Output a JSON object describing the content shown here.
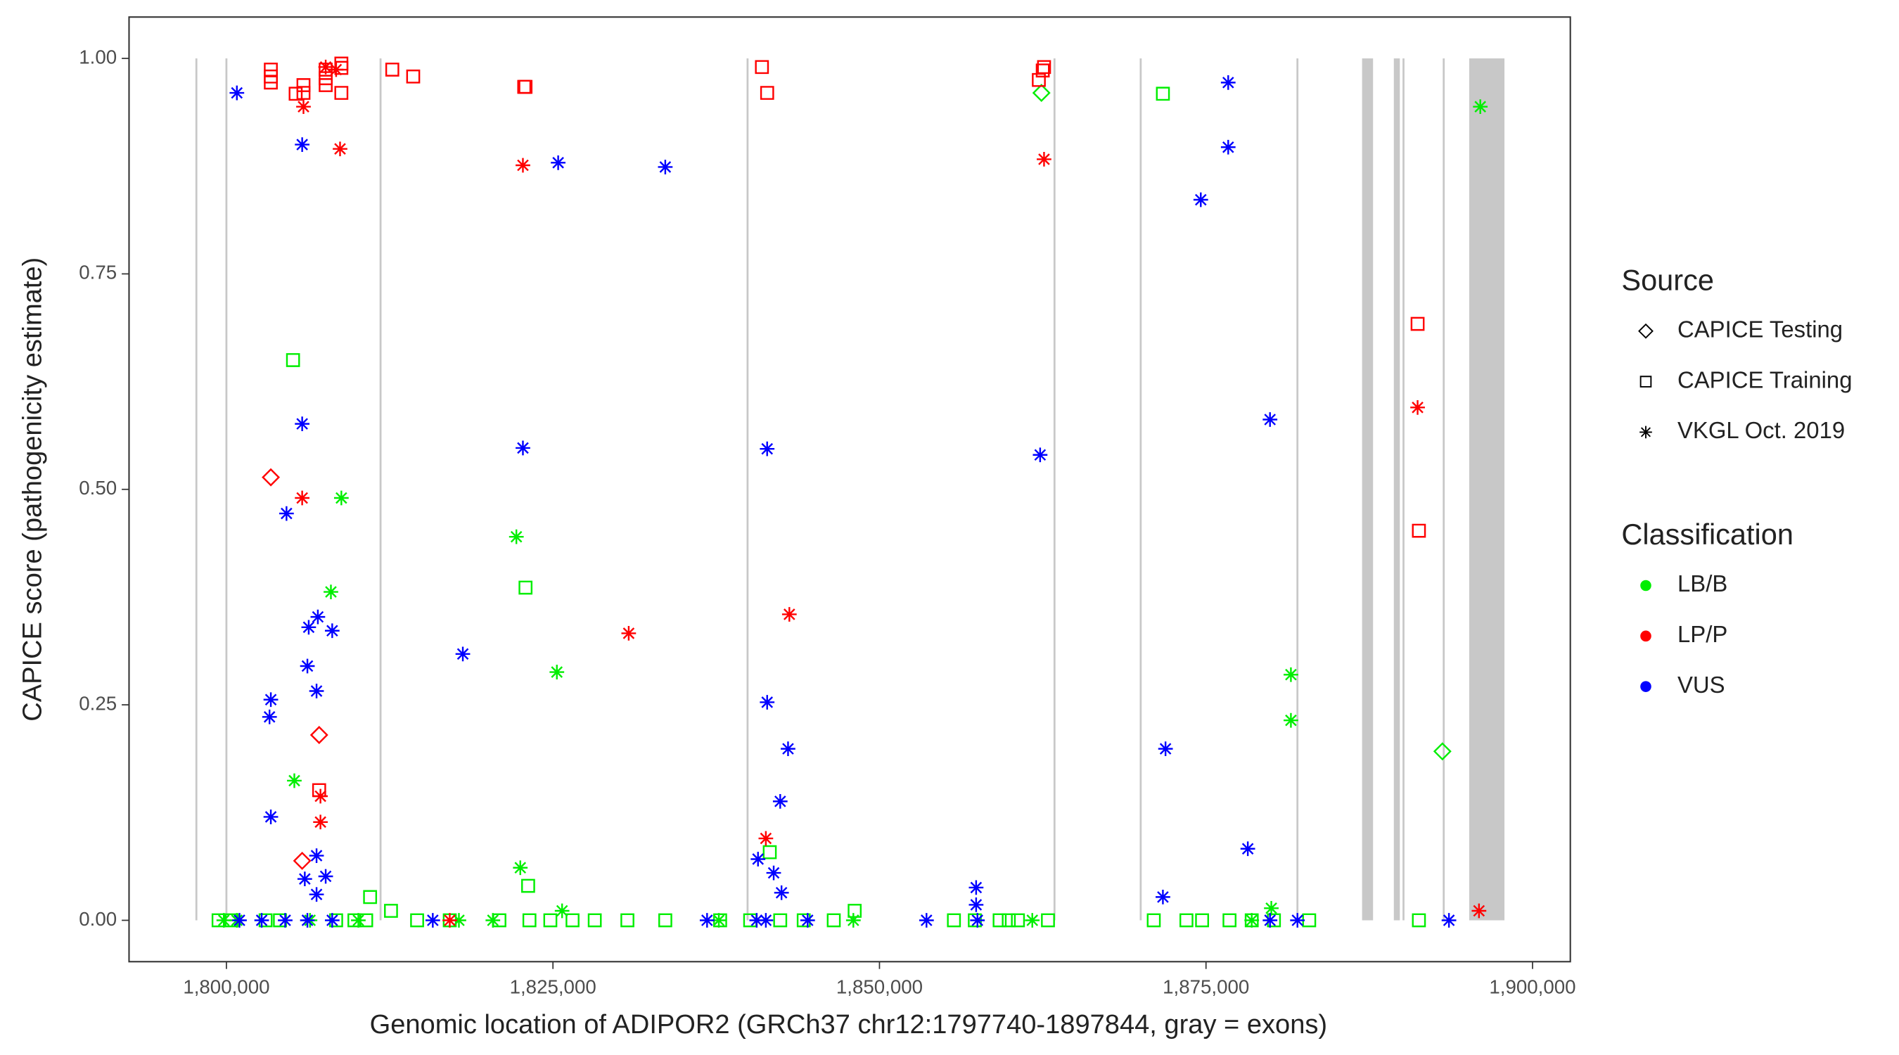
{
  "chart_data": {
    "type": "scatter",
    "xlabel": "Genomic location of ADIPOR2 (GRCh37 chr12:1797740-1897844, gray = exons)",
    "ylabel": "CAPICE score (pathogenicity estimate)",
    "xlim": [
      1792544,
      1902893
    ],
    "ylim": [
      -0.048,
      1.048
    ],
    "xticks": [
      {
        "value": 1800000,
        "label": "1,800,000"
      },
      {
        "value": 1825000,
        "label": "1,825,000"
      },
      {
        "value": 1850000,
        "label": "1,850,000"
      },
      {
        "value": 1875000,
        "label": "1,875,000"
      },
      {
        "value": 1900000,
        "label": "1,900,000"
      }
    ],
    "yticks": [
      {
        "value": 0,
        "label": "0.00"
      },
      {
        "value": 0.25,
        "label": "0.25"
      },
      {
        "value": 0.5,
        "label": "0.50"
      },
      {
        "value": 0.75,
        "label": "0.75"
      },
      {
        "value": 1,
        "label": "1.00"
      }
    ],
    "exon_color": "#c8c8c8",
    "exons": [
      [
        1797700,
        1797700
      ],
      [
        1800000,
        1800000
      ],
      [
        1811800,
        1811800
      ],
      [
        1839900,
        1839900
      ],
      [
        1863400,
        1863400
      ],
      [
        1870000,
        1870000
      ],
      [
        1882000,
        1882000
      ],
      [
        1886950,
        1887790
      ],
      [
        1889380,
        1889840
      ],
      [
        1890120,
        1890120
      ],
      [
        1893200,
        1893200
      ],
      [
        1895150,
        1897850
      ]
    ],
    "legend_source": {
      "title": "Source",
      "items": [
        {
          "name": "CAPICE Testing",
          "shape": "diamond"
        },
        {
          "name": "CAPICE Training",
          "shape": "square"
        },
        {
          "name": "VKGL Oct. 2019",
          "shape": "asterisk"
        }
      ]
    },
    "legend_classification": {
      "title": "Classification",
      "items": [
        {
          "name": "LB/B",
          "color": "#00ee00"
        },
        {
          "name": "LP/P",
          "color": "#ff0000"
        },
        {
          "name": "VUS",
          "color": "#0000ff"
        }
      ]
    },
    "series": [
      {
        "color": "#00ee00",
        "shape": "square",
        "x": [
          1805100,
          1811000,
          1812600,
          1822900,
          1823100,
          1841600,
          1871700,
          1848100,
          1799400,
          1800400,
          1803000,
          1804100,
          1808400,
          1809800,
          1810700,
          1814600,
          1817100,
          1820900,
          1823200,
          1824800,
          1826500,
          1828200,
          1830700,
          1833600,
          1837800,
          1840100,
          1842400,
          1844200,
          1846500,
          1855700,
          1857300,
          1859200,
          1859900,
          1860600,
          1862900,
          1871000,
          1873500,
          1874700,
          1876800,
          1878500,
          1880200,
          1882900,
          1891300
        ],
        "values": [
          0.65,
          0.027,
          0.011,
          0.386,
          0.04,
          0.079,
          0.959,
          0.011,
          0,
          0,
          0,
          0,
          0,
          0,
          0,
          0,
          0,
          0,
          0,
          0,
          0,
          0,
          0,
          0,
          0,
          0,
          0,
          0,
          0,
          0,
          0,
          0,
          0,
          0,
          0,
          0,
          0,
          0,
          0,
          0,
          0,
          0,
          0
        ]
      },
      {
        "color": "#00ee00",
        "shape": "diamond",
        "x": [
          1862400,
          1893100
        ],
        "values": [
          0.96,
          0.196
        ]
      },
      {
        "color": "#00ee00",
        "shape": "asterisk",
        "x": [
          1896000,
          1808800,
          1805200,
          1808000,
          1822200,
          1825300,
          1822500,
          1881500,
          1881500,
          1880000,
          1825700,
          1799800,
          1800800,
          1806400,
          1810100,
          1817800,
          1820400,
          1837700,
          1848000,
          1861700,
          1878500
        ],
        "values": [
          0.944,
          0.49,
          0.162,
          0.381,
          0.445,
          0.288,
          0.061,
          0.285,
          0.232,
          0.014,
          0.011,
          0,
          0,
          0,
          0,
          0,
          0,
          0,
          0,
          0,
          0
        ]
      },
      {
        "color": "#ff0000",
        "shape": "square",
        "x": [
          1803400,
          1803400,
          1803400,
          1805300,
          1805900,
          1805900,
          1807600,
          1807600,
          1807600,
          1808800,
          1808800,
          1808800,
          1812700,
          1814300,
          1822800,
          1822900,
          1841000,
          1841400,
          1862200,
          1862500,
          1862600,
          1807100,
          1891200,
          1891300
        ],
        "values": [
          0.987,
          0.979,
          0.972,
          0.959,
          0.969,
          0.96,
          0.987,
          0.977,
          0.969,
          0.994,
          0.989,
          0.96,
          0.987,
          0.979,
          0.967,
          0.967,
          0.99,
          0.96,
          0.975,
          0.986,
          0.99,
          0.151,
          0.692,
          0.452
        ]
      },
      {
        "color": "#ff0000",
        "shape": "diamond",
        "x": [
          1803400,
          1807100,
          1805800
        ],
        "values": [
          0.514,
          0.215,
          0.069
        ]
      },
      {
        "color": "#ff0000",
        "shape": "asterisk",
        "x": [
          1807600,
          1808400,
          1805900,
          1808700,
          1822700,
          1862600,
          1805800,
          1807200,
          1807200,
          1830800,
          1843100,
          1841300,
          1891200,
          1895900,
          1817100
        ],
        "values": [
          0.99,
          0.987,
          0.944,
          0.895,
          0.876,
          0.883,
          0.49,
          0.144,
          0.114,
          0.333,
          0.355,
          0.095,
          0.595,
          0.011,
          0
        ]
      },
      {
        "color": "#0000ff",
        "shape": "asterisk",
        "x": [
          1800800,
          1805800,
          1825400,
          1833600,
          1876700,
          1876700,
          1874600,
          1805800,
          1822700,
          1841400,
          1862300,
          1879900,
          1804600,
          1807000,
          1806300,
          1808100,
          1818100,
          1806200,
          1803400,
          1803300,
          1806900,
          1841400,
          1843000,
          1871900,
          1842400,
          1803400,
          1878200,
          1840700,
          1806900,
          1806000,
          1807600,
          1841900,
          1871700,
          1857400,
          1857400,
          1842500,
          1806900,
          1801000,
          1802700,
          1804500,
          1806200,
          1808100,
          1815800,
          1836800,
          1840600,
          1841300,
          1844500,
          1853600,
          1857500,
          1879900,
          1882000,
          1893600
        ],
        "values": [
          0.96,
          0.9,
          0.879,
          0.874,
          0.972,
          0.897,
          0.836,
          0.576,
          0.548,
          0.547,
          0.54,
          0.581,
          0.472,
          0.352,
          0.34,
          0.336,
          0.309,
          0.295,
          0.256,
          0.236,
          0.266,
          0.253,
          0.199,
          0.199,
          0.138,
          0.12,
          0.083,
          0.071,
          0.075,
          0.048,
          0.051,
          0.055,
          0.027,
          0.038,
          0.018,
          0.032,
          0.03,
          0,
          0,
          0,
          0,
          0,
          0,
          0,
          0,
          0,
          0,
          0,
          0,
          0,
          0,
          0
        ]
      }
    ]
  }
}
